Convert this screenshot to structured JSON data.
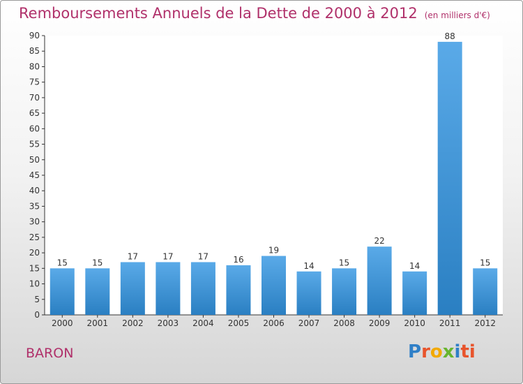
{
  "header": {
    "title": "Remboursements Annuels de la Dette de 2000 à 2012",
    "subtitle": "(en milliers d'€)"
  },
  "footer": {
    "commune": "BARON",
    "brand": "Proxiti"
  },
  "colors": {
    "title": "#b0306a",
    "bar_light": "#5aaae8",
    "bar_dark": "#2a7fc2",
    "axis": "#333333"
  },
  "chart_data": {
    "type": "bar",
    "title": "Remboursements Annuels de la Dette de 2000 à 2012",
    "subtitle": "(en milliers d'€)",
    "categories": [
      "2000",
      "2001",
      "2002",
      "2003",
      "2004",
      "2005",
      "2006",
      "2007",
      "2008",
      "2009",
      "2010",
      "2011",
      "2012"
    ],
    "values": [
      15,
      15,
      17,
      17,
      17,
      16,
      19,
      14,
      15,
      22,
      14,
      88,
      15
    ],
    "ylim": [
      0,
      90
    ],
    "yticks": [
      0,
      5,
      10,
      15,
      20,
      25,
      30,
      35,
      40,
      45,
      50,
      55,
      60,
      65,
      70,
      75,
      80,
      85,
      90
    ],
    "grid": false,
    "legend": "none"
  }
}
